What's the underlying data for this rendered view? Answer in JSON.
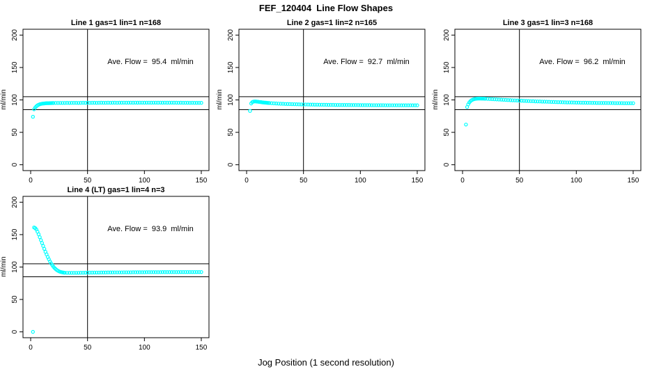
{
  "title": "FEF_120404  Line Flow Shapes",
  "xlabel": "Jog Position (1 second resolution)",
  "accent_color": "#00FFFF",
  "line_color": "#000000",
  "chart_data": [
    {
      "type": "scatter",
      "title": "Line 1 gas=1 lin=1 n=168",
      "annotation": "Ave. Flow =  95.4  ml/min",
      "ave_flow_ml_min": 95.4,
      "ylabel": "ml/min",
      "xlim": [
        0,
        150
      ],
      "ylim": [
        0,
        200
      ],
      "xticks": [
        0,
        50,
        100,
        150
      ],
      "yticks": [
        0,
        50,
        100,
        150,
        200
      ],
      "hlines": [
        105,
        85
      ],
      "vline": 50,
      "points": [
        [
          2,
          74
        ],
        [
          3,
          85.5
        ],
        [
          4,
          88.2
        ],
        [
          5,
          90.1
        ],
        [
          6,
          91.6
        ],
        [
          7,
          92.6
        ],
        [
          8,
          93.3
        ],
        [
          9,
          93.8
        ],
        [
          10,
          94.2
        ],
        [
          11,
          94.4
        ],
        [
          12,
          94.6
        ],
        [
          13,
          94.8
        ],
        [
          14,
          94.9
        ],
        [
          15,
          95
        ],
        [
          16,
          95
        ],
        [
          17,
          95.1
        ],
        [
          18,
          95.1
        ],
        [
          19,
          95.2
        ],
        [
          20,
          95.2
        ],
        [
          22,
          95.3
        ],
        [
          24,
          95.3
        ],
        [
          26,
          95.4
        ],
        [
          28,
          95.4
        ],
        [
          30,
          95.4
        ],
        [
          32,
          95.5
        ],
        [
          34,
          95.4
        ],
        [
          36,
          95.5
        ],
        [
          38,
          95.5
        ],
        [
          40,
          95.5
        ],
        [
          42,
          95.4
        ],
        [
          44,
          95.5
        ],
        [
          46,
          95.6
        ],
        [
          48,
          95.5
        ],
        [
          50,
          95.6
        ],
        [
          52,
          95.5
        ],
        [
          54,
          95.6
        ],
        [
          56,
          95.6
        ],
        [
          58,
          95.5
        ],
        [
          60,
          95.6
        ],
        [
          62,
          95.7
        ],
        [
          64,
          95.6
        ],
        [
          66,
          95.6
        ],
        [
          68,
          95.7
        ],
        [
          70,
          95.6
        ],
        [
          72,
          95.7
        ],
        [
          74,
          95.7
        ],
        [
          76,
          95.6
        ],
        [
          78,
          95.7
        ],
        [
          80,
          95.7
        ],
        [
          82,
          95.8
        ],
        [
          84,
          95.7
        ],
        [
          86,
          95.7
        ],
        [
          88,
          95.8
        ],
        [
          90,
          95.7
        ],
        [
          92,
          95.8
        ],
        [
          94,
          95.7
        ],
        [
          96,
          95.8
        ],
        [
          98,
          95.8
        ],
        [
          100,
          95.7
        ],
        [
          102,
          95.8
        ],
        [
          104,
          95.8
        ],
        [
          106,
          95.7
        ],
        [
          108,
          95.8
        ],
        [
          110,
          95.8
        ],
        [
          112,
          95.7
        ],
        [
          114,
          95.8
        ],
        [
          116,
          95.7
        ],
        [
          118,
          95.8
        ],
        [
          120,
          95.7
        ],
        [
          122,
          95.7
        ],
        [
          124,
          95.8
        ],
        [
          126,
          95.7
        ],
        [
          128,
          95.7
        ],
        [
          130,
          95.6
        ],
        [
          132,
          95.7
        ],
        [
          134,
          95.6
        ],
        [
          136,
          95.6
        ],
        [
          138,
          95.6
        ],
        [
          140,
          95.5
        ],
        [
          142,
          95.6
        ],
        [
          144,
          95.5
        ],
        [
          146,
          95.5
        ],
        [
          148,
          95.5
        ],
        [
          150,
          95.5
        ]
      ]
    },
    {
      "type": "scatter",
      "title": "Line 2 gas=1 lin=2 n=165",
      "annotation": "Ave. Flow =  92.7  ml/min",
      "ave_flow_ml_min": 92.7,
      "ylabel": "ml/min",
      "xlim": [
        0,
        150
      ],
      "ylim": [
        0,
        200
      ],
      "xticks": [
        0,
        50,
        100,
        150
      ],
      "yticks": [
        0,
        50,
        100,
        150,
        200
      ],
      "hlines": [
        105,
        85
      ],
      "vline": 50,
      "points": [
        [
          3,
          83
        ],
        [
          4,
          94.5
        ],
        [
          5,
          96.6
        ],
        [
          6,
          97.4
        ],
        [
          7,
          97.7
        ],
        [
          8,
          97.6
        ],
        [
          9,
          97.4
        ],
        [
          10,
          97.2
        ],
        [
          11,
          96.9
        ],
        [
          12,
          96.7
        ],
        [
          13,
          96.5
        ],
        [
          14,
          96.2
        ],
        [
          15,
          96
        ],
        [
          16,
          95.8
        ],
        [
          17,
          95.7
        ],
        [
          18,
          95.5
        ],
        [
          19,
          95.3
        ],
        [
          20,
          95.2
        ],
        [
          22,
          94.9
        ],
        [
          24,
          94.7
        ],
        [
          26,
          94.5
        ],
        [
          28,
          94.3
        ],
        [
          30,
          94.1
        ],
        [
          32,
          94
        ],
        [
          34,
          93.8
        ],
        [
          36,
          93.7
        ],
        [
          38,
          93.6
        ],
        [
          40,
          93.5
        ],
        [
          42,
          93.4
        ],
        [
          44,
          93.3
        ],
        [
          46,
          93.2
        ],
        [
          48,
          93.1
        ],
        [
          50,
          93
        ],
        [
          52,
          93
        ],
        [
          54,
          92.9
        ],
        [
          56,
          92.8
        ],
        [
          58,
          92.8
        ],
        [
          60,
          92.7
        ],
        [
          62,
          92.7
        ],
        [
          64,
          92.6
        ],
        [
          66,
          92.6
        ],
        [
          68,
          92.5
        ],
        [
          70,
          92.5
        ],
        [
          72,
          92.4
        ],
        [
          74,
          92.4
        ],
        [
          76,
          92.4
        ],
        [
          78,
          92.3
        ],
        [
          80,
          92.3
        ],
        [
          82,
          92.3
        ],
        [
          84,
          92.2
        ],
        [
          86,
          92.2
        ],
        [
          88,
          92.2
        ],
        [
          90,
          92.2
        ],
        [
          92,
          92.1
        ],
        [
          94,
          92.1
        ],
        [
          96,
          92.1
        ],
        [
          98,
          92.1
        ],
        [
          100,
          92
        ],
        [
          102,
          92
        ],
        [
          104,
          92
        ],
        [
          106,
          92
        ],
        [
          108,
          92
        ],
        [
          110,
          91.9
        ],
        [
          112,
          91.9
        ],
        [
          114,
          91.9
        ],
        [
          116,
          91.9
        ],
        [
          118,
          91.9
        ],
        [
          120,
          91.9
        ],
        [
          122,
          91.8
        ],
        [
          124,
          91.8
        ],
        [
          126,
          91.8
        ],
        [
          128,
          91.8
        ],
        [
          130,
          91.8
        ],
        [
          132,
          91.8
        ],
        [
          134,
          91.8
        ],
        [
          136,
          91.7
        ],
        [
          138,
          91.7
        ],
        [
          140,
          91.7
        ],
        [
          142,
          91.7
        ],
        [
          144,
          91.7
        ],
        [
          146,
          91.7
        ],
        [
          148,
          91.7
        ],
        [
          150,
          91.7
        ]
      ]
    },
    {
      "type": "scatter",
      "title": "Line 3 gas=1 lin=3 n=168",
      "annotation": "Ave. Flow =  96.2  ml/min",
      "ave_flow_ml_min": 96.2,
      "ylabel": "ml/min",
      "xlim": [
        0,
        150
      ],
      "ylim": [
        0,
        200
      ],
      "xticks": [
        0,
        50,
        100,
        150
      ],
      "yticks": [
        0,
        50,
        100,
        150,
        200
      ],
      "hlines": [
        105,
        85
      ],
      "vline": 50,
      "points": [
        [
          3,
          62
        ],
        [
          4,
          89
        ],
        [
          5,
          93.2
        ],
        [
          6,
          96.2
        ],
        [
          7,
          98.2
        ],
        [
          8,
          99.6
        ],
        [
          9,
          100.5
        ],
        [
          10,
          101.1
        ],
        [
          11,
          101.5
        ],
        [
          12,
          101.8
        ],
        [
          13,
          102
        ],
        [
          14,
          102.1
        ],
        [
          15,
          102.1
        ],
        [
          16,
          102.1
        ],
        [
          17,
          102
        ],
        [
          18,
          102
        ],
        [
          19,
          101.9
        ],
        [
          20,
          101.8
        ],
        [
          22,
          101.6
        ],
        [
          24,
          101.4
        ],
        [
          26,
          101.2
        ],
        [
          28,
          101
        ],
        [
          30,
          100.8
        ],
        [
          32,
          100.6
        ],
        [
          34,
          100.4
        ],
        [
          36,
          100.2
        ],
        [
          38,
          100
        ],
        [
          40,
          99.8
        ],
        [
          42,
          99.6
        ],
        [
          44,
          99.4
        ],
        [
          46,
          99.3
        ],
        [
          48,
          99.1
        ],
        [
          50,
          98.9
        ],
        [
          52,
          98.8
        ],
        [
          54,
          98.6
        ],
        [
          56,
          98.4
        ],
        [
          58,
          98.3
        ],
        [
          60,
          98.1
        ],
        [
          62,
          98
        ],
        [
          64,
          97.8
        ],
        [
          66,
          97.7
        ],
        [
          68,
          97.6
        ],
        [
          70,
          97.4
        ],
        [
          72,
          97.3
        ],
        [
          74,
          97.2
        ],
        [
          76,
          97.1
        ],
        [
          78,
          96.9
        ],
        [
          80,
          96.8
        ],
        [
          82,
          96.7
        ],
        [
          84,
          96.6
        ],
        [
          86,
          96.5
        ],
        [
          88,
          96.4
        ],
        [
          90,
          96.3
        ],
        [
          92,
          96.2
        ],
        [
          94,
          96.2
        ],
        [
          96,
          96.1
        ],
        [
          98,
          96
        ],
        [
          100,
          95.9
        ],
        [
          102,
          95.9
        ],
        [
          104,
          95.8
        ],
        [
          106,
          95.7
        ],
        [
          108,
          95.7
        ],
        [
          110,
          95.6
        ],
        [
          112,
          95.6
        ],
        [
          114,
          95.5
        ],
        [
          116,
          95.5
        ],
        [
          118,
          95.4
        ],
        [
          120,
          95.4
        ],
        [
          122,
          95.3
        ],
        [
          124,
          95.3
        ],
        [
          126,
          95.3
        ],
        [
          128,
          95.2
        ],
        [
          130,
          95.2
        ],
        [
          132,
          95.2
        ],
        [
          134,
          95.1
        ],
        [
          136,
          95.1
        ],
        [
          138,
          95.1
        ],
        [
          140,
          95.1
        ],
        [
          142,
          95
        ],
        [
          144,
          95
        ],
        [
          146,
          95
        ],
        [
          148,
          95
        ],
        [
          150,
          95
        ]
      ]
    },
    {
      "type": "scatter",
      "title": "Line 4 (LT) gas=1 lin=4 n=3",
      "annotation": "Ave. Flow =  93.9  ml/min",
      "ave_flow_ml_min": 93.9,
      "ylabel": "ml/min",
      "xlim": [
        0,
        150
      ],
      "ylim": [
        0,
        200
      ],
      "xticks": [
        0,
        50,
        100,
        150
      ],
      "yticks": [
        0,
        50,
        100,
        150,
        200
      ],
      "hlines": [
        105,
        85
      ],
      "vline": 50,
      "points": [
        [
          2,
          0
        ],
        [
          3,
          161
        ],
        [
          4,
          160
        ],
        [
          5,
          158
        ],
        [
          6,
          154.5
        ],
        [
          7,
          150.5
        ],
        [
          8,
          146
        ],
        [
          9,
          141.5
        ],
        [
          10,
          137
        ],
        [
          11,
          132.5
        ],
        [
          12,
          128
        ],
        [
          13,
          123.5
        ],
        [
          14,
          119.5
        ],
        [
          15,
          115.5
        ],
        [
          16,
          112
        ],
        [
          17,
          108.5
        ],
        [
          18,
          105.5
        ],
        [
          19,
          103
        ],
        [
          20,
          100.5
        ],
        [
          21,
          98.5
        ],
        [
          22,
          96.8
        ],
        [
          23,
          95.4
        ],
        [
          24,
          94.2
        ],
        [
          25,
          93.3
        ],
        [
          26,
          92.6
        ],
        [
          27,
          92.1
        ],
        [
          28,
          91.7
        ],
        [
          29,
          91.4
        ],
        [
          30,
          91.2
        ],
        [
          32,
          91.1
        ],
        [
          34,
          91
        ],
        [
          36,
          91
        ],
        [
          38,
          91
        ],
        [
          40,
          91.1
        ],
        [
          42,
          91.1
        ],
        [
          44,
          91.2
        ],
        [
          46,
          91.2
        ],
        [
          48,
          91.3
        ],
        [
          50,
          91.3
        ],
        [
          52,
          91.4
        ],
        [
          54,
          91.4
        ],
        [
          56,
          91.5
        ],
        [
          58,
          91.5
        ],
        [
          60,
          91.5
        ],
        [
          62,
          91.6
        ],
        [
          64,
          91.6
        ],
        [
          66,
          91.6
        ],
        [
          68,
          91.7
        ],
        [
          70,
          91.7
        ],
        [
          72,
          91.7
        ],
        [
          74,
          91.8
        ],
        [
          76,
          91.8
        ],
        [
          78,
          91.8
        ],
        [
          80,
          91.8
        ],
        [
          82,
          91.9
        ],
        [
          84,
          91.9
        ],
        [
          86,
          91.9
        ],
        [
          88,
          91.9
        ],
        [
          90,
          92
        ],
        [
          92,
          92
        ],
        [
          94,
          92
        ],
        [
          96,
          92
        ],
        [
          98,
          92
        ],
        [
          100,
          92
        ],
        [
          102,
          92.1
        ],
        [
          104,
          92.1
        ],
        [
          106,
          92.1
        ],
        [
          108,
          92.1
        ],
        [
          110,
          92.1
        ],
        [
          112,
          92.1
        ],
        [
          114,
          92.1
        ],
        [
          116,
          92.2
        ],
        [
          118,
          92.2
        ],
        [
          120,
          92.2
        ],
        [
          122,
          92.2
        ],
        [
          124,
          92.2
        ],
        [
          126,
          92.2
        ],
        [
          128,
          92.2
        ],
        [
          130,
          92.2
        ],
        [
          132,
          92.3
        ],
        [
          134,
          92.3
        ],
        [
          136,
          92.3
        ],
        [
          138,
          92.3
        ],
        [
          140,
          92.3
        ],
        [
          142,
          92.3
        ],
        [
          144,
          92.3
        ],
        [
          146,
          92.3
        ],
        [
          148,
          92.3
        ],
        [
          150,
          92.3
        ]
      ]
    }
  ]
}
